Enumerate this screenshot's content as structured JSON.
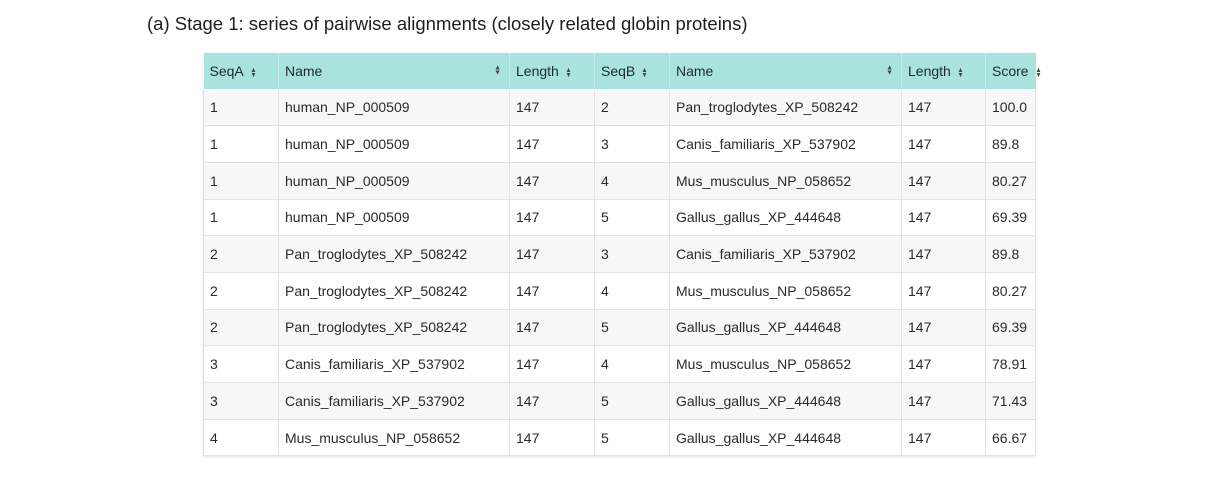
{
  "caption": "(a) Stage 1: series of pairwise alignments (closely related globin proteins)",
  "table": {
    "headers": [
      "SeqA",
      "Name",
      "Length",
      "SeqB",
      "Name",
      "Length",
      "Score"
    ],
    "sort_icon": "sort-updown-icon",
    "header_color": "#a9e3de",
    "rows": [
      [
        "1",
        "human_NP_000509",
        "147",
        "2",
        "Pan_troglodytes_XP_508242",
        "147",
        "100.0"
      ],
      [
        "1",
        "human_NP_000509",
        "147",
        "3",
        "Canis_familiaris_XP_537902",
        "147",
        "89.8"
      ],
      [
        "1",
        "human_NP_000509",
        "147",
        "4",
        "Mus_musculus_NP_058652",
        "147",
        "80.27"
      ],
      [
        "1",
        "human_NP_000509",
        "147",
        "5",
        "Gallus_gallus_XP_444648",
        "147",
        "69.39"
      ],
      [
        "2",
        "Pan_troglodytes_XP_508242",
        "147",
        "3",
        "Canis_familiaris_XP_537902",
        "147",
        "89.8"
      ],
      [
        "2",
        "Pan_troglodytes_XP_508242",
        "147",
        "4",
        "Mus_musculus_NP_058652",
        "147",
        "80.27"
      ],
      [
        "2",
        "Pan_troglodytes_XP_508242",
        "147",
        "5",
        "Gallus_gallus_XP_444648",
        "147",
        "69.39"
      ],
      [
        "3",
        "Canis_familiaris_XP_537902",
        "147",
        "4",
        "Mus_musculus_NP_058652",
        "147",
        "78.91"
      ],
      [
        "3",
        "Canis_familiaris_XP_537902",
        "147",
        "5",
        "Gallus_gallus_XP_444648",
        "147",
        "71.43"
      ],
      [
        "4",
        "Mus_musculus_NP_058652",
        "147",
        "5",
        "Gallus_gallus_XP_444648",
        "147",
        "66.67"
      ]
    ]
  }
}
